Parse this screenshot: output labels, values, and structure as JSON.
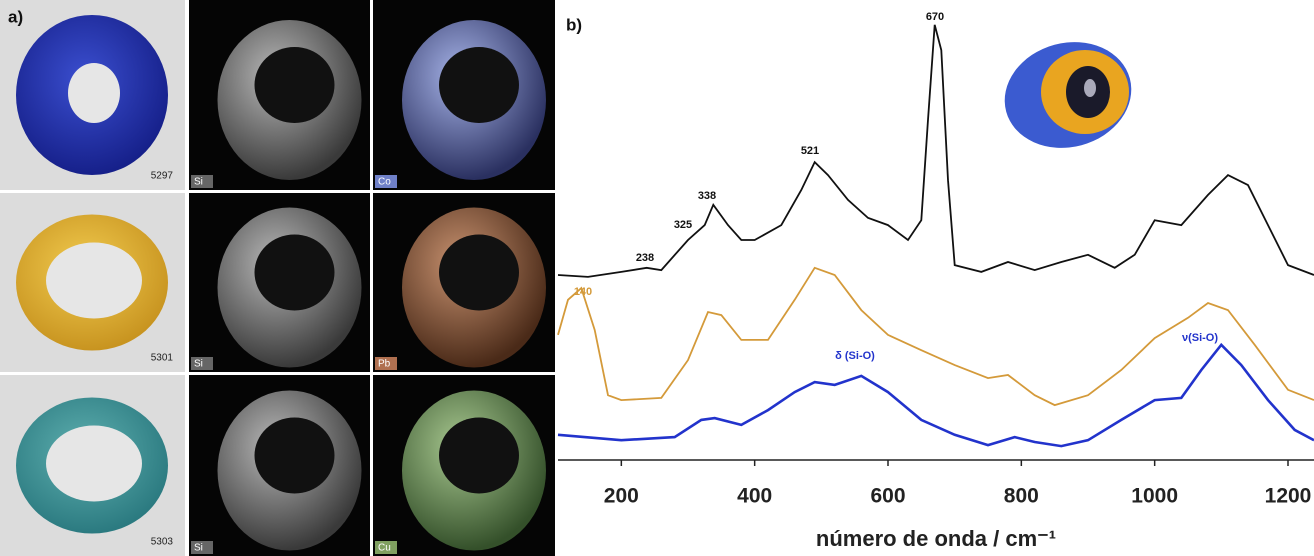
{
  "panel_a": {
    "label": "a)",
    "rows": [
      {
        "sample": "5297",
        "maps": [
          "Si",
          "Co"
        ]
      },
      {
        "sample": "5301",
        "maps": [
          "Si",
          "Pb"
        ]
      },
      {
        "sample": "5303",
        "maps": [
          "Si",
          "Cu"
        ]
      }
    ]
  },
  "chart_data": {
    "type": "line",
    "panel_label": "b)",
    "x_label": "número de onda / cm⁻¹",
    "xlim": [
      105,
      1239
    ],
    "xticks": [
      200,
      400,
      600,
      800,
      1000,
      1200
    ],
    "ylim": [
      0,
      100
    ],
    "annotations": [
      {
        "text": "670",
        "color": "#111111"
      },
      {
        "text": "521",
        "color": "#111111"
      },
      {
        "text": "338",
        "color": "#111111"
      },
      {
        "text": "325",
        "color": "#111111"
      },
      {
        "text": "238",
        "color": "#111111"
      },
      {
        "text": "140",
        "color": "#d49a3a"
      },
      {
        "text": "δ (Si-O)",
        "color": "#2233cc"
      },
      {
        "text": "ν(Si-O)",
        "color": "#2233cc"
      }
    ],
    "series": [
      {
        "color": "#111111",
        "x": [
          105,
          150,
          200,
          238,
          260,
          300,
          325,
          338,
          360,
          380,
          400,
          440,
          470,
          490,
          510,
          540,
          570,
          600,
          630,
          650,
          660,
          670,
          680,
          690,
          700,
          740,
          780,
          820,
          860,
          900,
          940,
          970,
          1000,
          1040,
          1080,
          1110,
          1140,
          1170,
          1200,
          1239
        ],
        "values": [
          41.1,
          40.7,
          41.8,
          42.7,
          42.2,
          48.9,
          52.2,
          56.7,
          52.2,
          48.9,
          48.9,
          52.2,
          60,
          66.2,
          63.3,
          57.8,
          53.8,
          52.2,
          48.9,
          53.3,
          75.6,
          96.7,
          91.1,
          62.2,
          43.3,
          41.8,
          44,
          42.2,
          44,
          45.6,
          42.7,
          45.6,
          53.3,
          52.2,
          58.9,
          63.3,
          61.1,
          52.2,
          43.3,
          41.1
        ]
      },
      {
        "color": "#d49a3a",
        "x": [
          105,
          120,
          140,
          160,
          180,
          200,
          260,
          300,
          330,
          350,
          380,
          420,
          460,
          490,
          520,
          560,
          600,
          650,
          700,
          750,
          780,
          820,
          850,
          900,
          950,
          1000,
          1050,
          1080,
          1110,
          1150,
          1200,
          1239
        ],
        "values": [
          27.8,
          35.6,
          38.2,
          28.9,
          14.4,
          13.3,
          13.8,
          22.2,
          32.9,
          32.2,
          26.7,
          26.7,
          35.6,
          42.7,
          41.1,
          33.3,
          27.8,
          24.4,
          21.1,
          18.2,
          18.9,
          14.4,
          12.2,
          14.4,
          20,
          27.1,
          31.6,
          34.9,
          33.3,
          25.6,
          15.6,
          13.3
        ]
      },
      {
        "color": "#2233cc",
        "x": [
          105,
          200,
          280,
          320,
          340,
          380,
          420,
          460,
          490,
          520,
          560,
          600,
          650,
          700,
          750,
          790,
          820,
          860,
          900,
          950,
          1000,
          1040,
          1070,
          1100,
          1130,
          1170,
          1210,
          1239
        ],
        "values": [
          5.6,
          4.4,
          5.1,
          8.9,
          9.3,
          7.8,
          11.1,
          15.1,
          17.3,
          16.7,
          18.7,
          15.1,
          8.9,
          5.6,
          3.3,
          5.1,
          4,
          3.1,
          4.4,
          8.9,
          13.3,
          13.8,
          20,
          25.6,
          21.1,
          13.3,
          6.7,
          4.4
        ]
      }
    ]
  }
}
